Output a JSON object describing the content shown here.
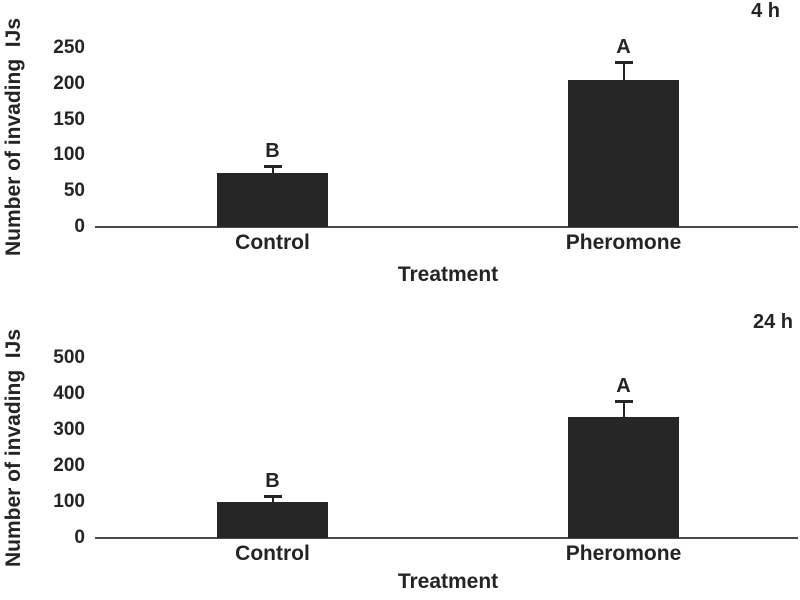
{
  "figure": {
    "background": "#ffffff",
    "bar_color": "#262626",
    "axis_color": "#4a4a4a",
    "text_color": "#242424"
  },
  "chart_data": [
    {
      "type": "bar",
      "panel_label": "4 h",
      "xlabel": "Treatment",
      "ylabel": "Number of invading  IJs",
      "categories": [
        "Control",
        "Pheromone"
      ],
      "values": [
        75,
        205
      ],
      "error_plus": [
        10,
        25
      ],
      "bar_letters": [
        "B",
        "A"
      ],
      "yticks": [
        0,
        50,
        100,
        150,
        200,
        250
      ],
      "ylim": [
        0,
        250
      ],
      "grid": false,
      "legend": "none"
    },
    {
      "type": "bar",
      "panel_label": "24 h",
      "xlabel": "Treatment",
      "ylabel": "Number of invading  IJs",
      "categories": [
        "Control",
        "Pheromone"
      ],
      "values": [
        100,
        335
      ],
      "error_plus": [
        18,
        45
      ],
      "bar_letters": [
        "B",
        "A"
      ],
      "yticks": [
        0,
        100,
        200,
        300,
        400,
        500
      ],
      "ylim": [
        0,
        500
      ],
      "grid": false,
      "legend": "none"
    }
  ]
}
